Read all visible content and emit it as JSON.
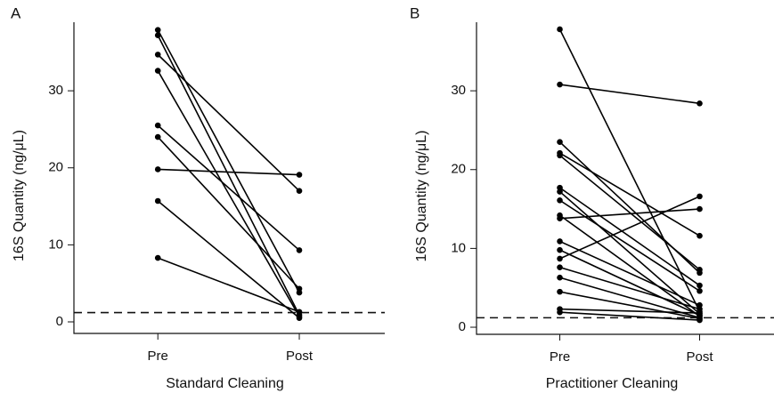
{
  "chart_data": [
    {
      "type": "paired",
      "panel": "A",
      "x_label": "Standard Cleaning",
      "y_label": "16S Quantity (ng/μL)",
      "categories": [
        "Pre",
        "Post"
      ],
      "color": "#000000",
      "ylim": [
        -1.5,
        38.9
      ],
      "yticks": [
        0,
        10,
        20,
        30
      ],
      "hline": 1.2,
      "series": [
        {
          "values": [
            37.9,
            3.8
          ]
        },
        {
          "values": [
            37.2,
            0.9
          ]
        },
        {
          "values": [
            34.7,
            17.0
          ]
        },
        {
          "values": [
            32.6,
            0.7
          ]
        },
        {
          "values": [
            25.5,
            9.3
          ]
        },
        {
          "values": [
            24.0,
            4.3
          ]
        },
        {
          "values": [
            19.8,
            19.1
          ]
        },
        {
          "values": [
            15.7,
            0.5
          ]
        },
        {
          "values": [
            8.3,
            1.3
          ]
        }
      ]
    },
    {
      "type": "paired",
      "panel": "B",
      "x_label": "Practitioner Cleaning",
      "y_label": "16S Quantity (ng/μL)",
      "categories": [
        "Pre",
        "Post"
      ],
      "color": "#000000",
      "ylim": [
        -0.9,
        38.7
      ],
      "yticks": [
        0,
        10,
        20,
        30
      ],
      "hline": 1.2,
      "series": [
        {
          "values": [
            37.8,
            2.0
          ]
        },
        {
          "values": [
            30.8,
            28.4
          ]
        },
        {
          "values": [
            23.5,
            6.9
          ]
        },
        {
          "values": [
            22.1,
            11.6
          ]
        },
        {
          "values": [
            21.8,
            7.3
          ]
        },
        {
          "values": [
            17.7,
            5.3
          ]
        },
        {
          "values": [
            17.2,
            1.7
          ]
        },
        {
          "values": [
            16.1,
            4.6
          ]
        },
        {
          "values": [
            14.2,
            1.4
          ]
        },
        {
          "values": [
            13.8,
            15.0
          ]
        },
        {
          "values": [
            10.9,
            2.8
          ]
        },
        {
          "values": [
            9.8,
            1.5
          ]
        },
        {
          "values": [
            8.7,
            16.6
          ]
        },
        {
          "values": [
            7.6,
            2.3
          ]
        },
        {
          "values": [
            6.3,
            1.2
          ]
        },
        {
          "values": [
            4.5,
            1.1
          ]
        },
        {
          "values": [
            2.3,
            1.8
          ]
        },
        {
          "values": [
            1.9,
            0.9
          ]
        }
      ]
    }
  ]
}
